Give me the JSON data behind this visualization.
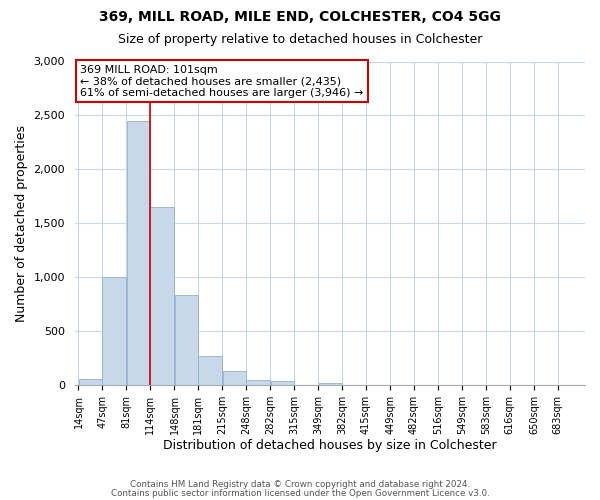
{
  "title": "369, MILL ROAD, MILE END, COLCHESTER, CO4 5GG",
  "subtitle": "Size of property relative to detached houses in Colchester",
  "xlabel": "Distribution of detached houses by size in Colchester",
  "ylabel": "Number of detached properties",
  "bar_values": [
    50,
    1000,
    2450,
    1650,
    830,
    265,
    130,
    45,
    35,
    0,
    15,
    0,
    0,
    0,
    0,
    0,
    0,
    0,
    0,
    0
  ],
  "bar_labels": [
    "14sqm",
    "47sqm",
    "81sqm",
    "114sqm",
    "148sqm",
    "181sqm",
    "215sqm",
    "248sqm",
    "282sqm",
    "315sqm",
    "349sqm",
    "382sqm",
    "415sqm",
    "449sqm",
    "482sqm",
    "516sqm",
    "549sqm",
    "583sqm",
    "616sqm",
    "650sqm",
    "683sqm"
  ],
  "bar_color": "#c8d8ea",
  "bar_edge_color": "#9ab8cc",
  "annotation_title": "369 MILL ROAD: 101sqm",
  "annotation_line1": "← 38% of detached houses are smaller (2,435)",
  "annotation_line2": "61% of semi-detached houses are larger (3,946) →",
  "annotation_box_color": "#ffffff",
  "annotation_box_edge_color": "#cc0000",
  "property_line_color": "#cc0000",
  "ylim": [
    0,
    3000
  ],
  "yticks": [
    0,
    500,
    1000,
    1500,
    2000,
    2500,
    3000
  ],
  "footer1": "Contains HM Land Registry data © Crown copyright and database right 2024.",
  "footer2": "Contains public sector information licensed under the Open Government Licence v3.0.",
  "background_color": "#ffffff",
  "grid_color": "#c8d8ea",
  "bin_starts": [
    14,
    47,
    81,
    114,
    148,
    181,
    215,
    248,
    282,
    315,
    349,
    382,
    415,
    449,
    482,
    516,
    549,
    583,
    616,
    650
  ],
  "bin_width": 33,
  "property_sqm": 101,
  "title_fontsize": 10,
  "subtitle_fontsize": 9
}
